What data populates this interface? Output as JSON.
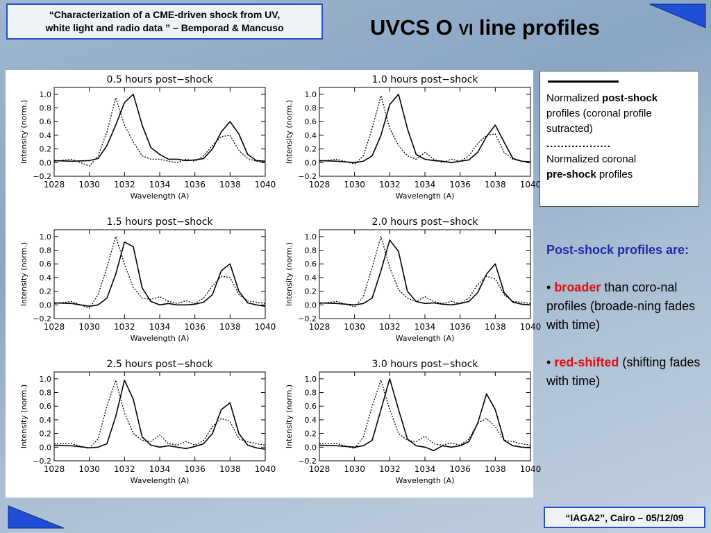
{
  "header": {
    "citation_line1": "“Characterization of a CME-driven shock  from UV,",
    "citation_line2": "white light and radio data ” – Bemporad & Mancuso"
  },
  "title": {
    "main": "UVCS O ",
    "ion": "VI",
    "rest": " line profiles"
  },
  "legend": {
    "solid_text_pre": "Normalized ",
    "solid_text_bold": "post-shock",
    "solid_text_post": "profiles (coronal profile sutracted)",
    "dotted_marker": "..................",
    "dotted_text_pre": "Normalized coronal",
    "dotted_text_bold": "pre-shock",
    "dotted_text_post": " profiles"
  },
  "side": {
    "heading": "Post-shock profiles are:",
    "b1_bullet": "• ",
    "b1_red": "broader",
    "b1_text": " than coro-nal profiles (broade-ning fades with time)",
    "b2_bullet": "• ",
    "b2_red": "red-shifted",
    "b2_text": " (shifting fades with time)"
  },
  "footer": {
    "text": "“IAGA2”, Cairo – 05/12/09"
  },
  "colors": {
    "accent_blue": "#2b4fc9",
    "highlight_red": "#e01010",
    "heading_blue": "#1f2aa8"
  },
  "chart_data": [
    {
      "type": "line",
      "title": "0.5 hours post−shock",
      "xlabel": "Wavelength (A)",
      "ylabel": "Intensity (norm.)",
      "xlim": [
        1028,
        1040
      ],
      "ylim": [
        -0.2,
        1.1
      ],
      "xticks": [
        "1028",
        "1030",
        "1032",
        "1034",
        "1036",
        "1038",
        "1040"
      ],
      "yticks": [
        "−0.2",
        "0.0",
        "0.2",
        "0.4",
        "0.6",
        "0.8",
        "1.0"
      ],
      "x": [
        1028,
        1029,
        1030,
        1030.5,
        1031,
        1031.5,
        1032,
        1032.5,
        1033,
        1033.5,
        1034,
        1034.5,
        1035,
        1035.5,
        1036,
        1036.5,
        1037,
        1037.5,
        1038,
        1038.5,
        1039,
        1039.5,
        1040
      ],
      "series": [
        {
          "style": "solid",
          "values": [
            0.03,
            0.02,
            0.03,
            0.06,
            0.25,
            0.55,
            0.88,
            1.0,
            0.55,
            0.22,
            0.12,
            0.05,
            0.05,
            0.03,
            0.04,
            0.06,
            0.2,
            0.45,
            0.6,
            0.42,
            0.12,
            0.03,
            0.02
          ]
        },
        {
          "style": "dotted",
          "values": [
            0.02,
            0.05,
            -0.05,
            0.1,
            0.45,
            0.95,
            0.55,
            0.3,
            0.1,
            0.05,
            0.05,
            0.02,
            0.0,
            0.05,
            0.02,
            0.1,
            0.25,
            0.38,
            0.4,
            0.18,
            0.06,
            0.02,
            0.0
          ]
        }
      ]
    },
    {
      "type": "line",
      "title": "1.0 hours post−shock",
      "xlabel": "Wavelength (A)",
      "ylabel": "Intensity (norm.)",
      "xlim": [
        1028,
        1040
      ],
      "ylim": [
        -0.2,
        1.1
      ],
      "xticks": [
        "1028",
        "1030",
        "1032",
        "1034",
        "1036",
        "1038",
        "1040"
      ],
      "yticks": [
        "−0.2",
        "0.0",
        "0.2",
        "0.4",
        "0.6",
        "0.8",
        "1.0"
      ],
      "x": [
        1028,
        1029,
        1030,
        1030.5,
        1031,
        1031.5,
        1032,
        1032.5,
        1033,
        1033.5,
        1034,
        1034.5,
        1035,
        1035.5,
        1036,
        1036.5,
        1037,
        1037.5,
        1038,
        1038.5,
        1039,
        1039.5,
        1040
      ],
      "series": [
        {
          "style": "solid",
          "values": [
            0.03,
            0.02,
            0.0,
            0.02,
            0.1,
            0.4,
            0.85,
            1.0,
            0.5,
            0.12,
            0.05,
            0.03,
            0.02,
            0.0,
            0.02,
            0.04,
            0.15,
            0.38,
            0.55,
            0.3,
            0.06,
            0.02,
            0.01
          ]
        },
        {
          "style": "dotted",
          "values": [
            0.02,
            0.05,
            -0.02,
            0.1,
            0.5,
            0.98,
            0.5,
            0.25,
            0.1,
            0.05,
            0.15,
            0.05,
            0.0,
            0.05,
            0.02,
            0.1,
            0.28,
            0.4,
            0.42,
            0.15,
            0.05,
            0.02,
            0.0
          ]
        }
      ]
    },
    {
      "type": "line",
      "title": "1.5 hours post−shock",
      "xlabel": "Wavelength (A)",
      "ylabel": "Intensity (norm.)",
      "xlim": [
        1028,
        1040
      ],
      "ylim": [
        -0.2,
        1.1
      ],
      "xticks": [
        "1028",
        "1030",
        "1032",
        "1034",
        "1036",
        "1038",
        "1040"
      ],
      "yticks": [
        "−0.2",
        "0.0",
        "0.2",
        "0.4",
        "0.6",
        "0.8",
        "1.0"
      ],
      "x": [
        1028,
        1029,
        1030,
        1030.5,
        1031,
        1031.5,
        1032,
        1032.5,
        1033,
        1033.5,
        1034,
        1034.5,
        1035,
        1035.5,
        1036,
        1036.5,
        1037,
        1037.5,
        1038,
        1038.5,
        1039,
        1039.5,
        1040
      ],
      "series": [
        {
          "style": "solid",
          "values": [
            0.03,
            0.02,
            -0.02,
            0.0,
            0.1,
            0.45,
            0.92,
            0.85,
            0.25,
            0.05,
            0.0,
            0.02,
            0.0,
            0.0,
            0.01,
            0.04,
            0.15,
            0.5,
            0.6,
            0.2,
            0.03,
            0.0,
            -0.02
          ]
        },
        {
          "style": "dotted",
          "values": [
            0.02,
            0.05,
            -0.05,
            0.15,
            0.55,
            1.0,
            0.6,
            0.25,
            0.1,
            0.08,
            0.12,
            0.05,
            0.02,
            0.06,
            0.02,
            0.1,
            0.28,
            0.42,
            0.4,
            0.15,
            0.06,
            0.04,
            0.02
          ]
        }
      ]
    },
    {
      "type": "line",
      "title": "2.0 hours post−shock",
      "xlabel": "Wavelength (A)",
      "ylabel": "Intensity (norm.)",
      "xlim": [
        1028,
        1040
      ],
      "ylim": [
        -0.2,
        1.1
      ],
      "xticks": [
        "1028",
        "1030",
        "1032",
        "1034",
        "1036",
        "1038",
        "1040"
      ],
      "yticks": [
        "−0.2",
        "0.0",
        "0.2",
        "0.4",
        "0.6",
        "0.8",
        "1.0"
      ],
      "x": [
        1028,
        1029,
        1030,
        1030.5,
        1031,
        1031.5,
        1032,
        1032.5,
        1033,
        1033.5,
        1034,
        1034.5,
        1035,
        1035.5,
        1036,
        1036.5,
        1037,
        1037.5,
        1038,
        1038.5,
        1039,
        1039.5,
        1040
      ],
      "series": [
        {
          "style": "solid",
          "values": [
            0.03,
            0.02,
            0.0,
            0.02,
            0.1,
            0.5,
            0.95,
            0.78,
            0.2,
            0.05,
            0.02,
            0.03,
            0.01,
            0.0,
            0.02,
            0.05,
            0.18,
            0.45,
            0.6,
            0.18,
            0.04,
            0.01,
            0.0
          ]
        },
        {
          "style": "dotted",
          "values": [
            0.02,
            0.05,
            -0.03,
            0.12,
            0.55,
            1.0,
            0.55,
            0.22,
            0.1,
            0.05,
            0.12,
            0.05,
            0.02,
            0.05,
            0.02,
            0.1,
            0.3,
            0.42,
            0.38,
            0.15,
            0.05,
            0.04,
            0.02
          ]
        }
      ]
    },
    {
      "type": "line",
      "title": "2.5 hours post−shock",
      "xlabel": "Wavelength (A)",
      "ylabel": "Intensity (norm.)",
      "xlim": [
        1028,
        1040
      ],
      "ylim": [
        -0.2,
        1.1
      ],
      "xticks": [
        "1028",
        "1030",
        "1032",
        "1034",
        "1036",
        "1038",
        "1040"
      ],
      "yticks": [
        "−0.2",
        "0.0",
        "0.2",
        "0.4",
        "0.6",
        "0.8",
        "1.0"
      ],
      "x": [
        1028,
        1029,
        1030,
        1030.5,
        1031,
        1031.5,
        1032,
        1032.5,
        1033,
        1033.5,
        1034,
        1034.5,
        1035,
        1035.5,
        1036,
        1036.5,
        1037,
        1037.5,
        1038,
        1038.5,
        1039,
        1039.5,
        1040
      ],
      "series": [
        {
          "style": "solid",
          "values": [
            0.03,
            0.02,
            -0.01,
            0.0,
            0.05,
            0.45,
            0.98,
            0.7,
            0.15,
            0.03,
            0.0,
            0.02,
            0.0,
            -0.02,
            0.01,
            0.05,
            0.2,
            0.55,
            0.65,
            0.2,
            0.03,
            -0.01,
            -0.03
          ]
        },
        {
          "style": "dotted",
          "values": [
            0.05,
            0.05,
            -0.02,
            0.12,
            0.6,
            0.98,
            0.5,
            0.2,
            0.1,
            0.08,
            0.18,
            0.05,
            0.03,
            0.08,
            0.03,
            0.1,
            0.3,
            0.42,
            0.38,
            0.12,
            0.08,
            0.05,
            0.03
          ]
        }
      ]
    },
    {
      "type": "line",
      "title": "3.0 hours post−shock",
      "xlabel": "Wavelength (A)",
      "ylabel": "Intensity (norm.)",
      "xlim": [
        1028,
        1040
      ],
      "ylim": [
        -0.2,
        1.1
      ],
      "xticks": [
        "1028",
        "1030",
        "1032",
        "1034",
        "1036",
        "1038",
        "1040"
      ],
      "yticks": [
        "−0.2",
        "0.0",
        "0.2",
        "0.4",
        "0.6",
        "0.8",
        "1.0"
      ],
      "x": [
        1028,
        1029,
        1030,
        1030.5,
        1031,
        1031.5,
        1032,
        1032.5,
        1033,
        1033.5,
        1034,
        1034.5,
        1035,
        1035.5,
        1036,
        1036.5,
        1037,
        1037.5,
        1038,
        1038.5,
        1039,
        1039.5,
        1040
      ],
      "series": [
        {
          "style": "solid",
          "values": [
            0.03,
            0.02,
            0.0,
            0.02,
            0.1,
            0.55,
            1.0,
            0.55,
            0.12,
            0.02,
            0.0,
            -0.05,
            0.02,
            0.0,
            0.02,
            0.08,
            0.35,
            0.78,
            0.55,
            0.1,
            0.02,
            0.0,
            -0.01
          ]
        },
        {
          "style": "dotted",
          "values": [
            0.05,
            0.05,
            -0.02,
            0.15,
            0.6,
            0.98,
            0.55,
            0.2,
            0.1,
            0.08,
            0.16,
            0.05,
            0.03,
            0.06,
            0.03,
            0.12,
            0.35,
            0.42,
            0.3,
            0.1,
            0.08,
            0.05,
            0.03
          ]
        }
      ]
    }
  ]
}
